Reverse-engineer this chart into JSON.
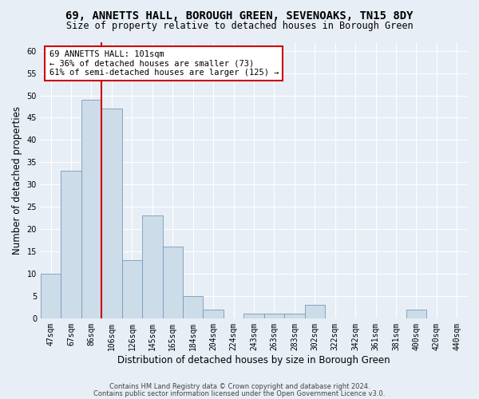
{
  "title": "69, ANNETTS HALL, BOROUGH GREEN, SEVENOAKS, TN15 8DY",
  "subtitle": "Size of property relative to detached houses in Borough Green",
  "xlabel": "Distribution of detached houses by size in Borough Green",
  "ylabel": "Number of detached properties",
  "categories": [
    "47sqm",
    "67sqm",
    "86sqm",
    "106sqm",
    "126sqm",
    "145sqm",
    "165sqm",
    "184sqm",
    "204sqm",
    "224sqm",
    "243sqm",
    "263sqm",
    "283sqm",
    "302sqm",
    "322sqm",
    "342sqm",
    "361sqm",
    "381sqm",
    "400sqm",
    "420sqm",
    "440sqm"
  ],
  "values": [
    10,
    33,
    49,
    47,
    13,
    23,
    16,
    5,
    2,
    0,
    1,
    1,
    1,
    3,
    0,
    0,
    0,
    0,
    2,
    0,
    0
  ],
  "bar_color": "#ccdce8",
  "bar_edge_color": "#7799bb",
  "property_line_color": "#cc0000",
  "annotation_text": "69 ANNETTS HALL: 101sqm\n← 36% of detached houses are smaller (73)\n61% of semi-detached houses are larger (125) →",
  "annotation_box_color": "#ffffff",
  "annotation_box_edge_color": "#cc0000",
  "ylim": [
    0,
    62
  ],
  "yticks": [
    0,
    5,
    10,
    15,
    20,
    25,
    30,
    35,
    40,
    45,
    50,
    55,
    60
  ],
  "footer_line1": "Contains HM Land Registry data © Crown copyright and database right 2024.",
  "footer_line2": "Contains public sector information licensed under the Open Government Licence v3.0.",
  "bg_color": "#e8eef6",
  "plot_bg_color": "#e8eef6",
  "title_fontsize": 10,
  "subtitle_fontsize": 8.5,
  "tick_fontsize": 7,
  "ylabel_fontsize": 8.5,
  "xlabel_fontsize": 8.5,
  "footer_fontsize": 6,
  "annotation_fontsize": 7.5
}
